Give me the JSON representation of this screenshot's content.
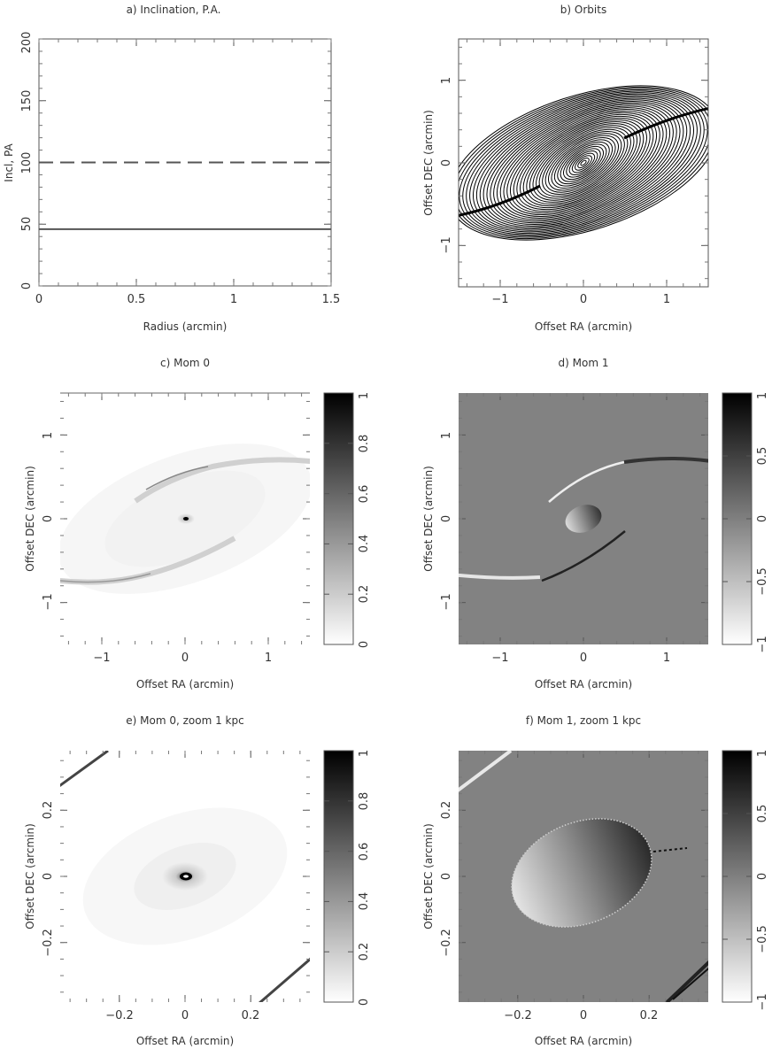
{
  "panels": [
    {
      "id": "a",
      "title": "a) Inclination, P.A.",
      "xlabel": "Radius (arcmin)",
      "ylabel": "Incl, PA",
      "xlim": [
        0,
        1.5
      ],
      "ylim": [
        0,
        200
      ],
      "xticks": [
        "0",
        "0.5",
        "1",
        "1.5"
      ],
      "yticks": [
        "0",
        "50",
        "100",
        "150",
        "200"
      ]
    },
    {
      "id": "b",
      "title": "b) Orbits",
      "xlabel": "Offset RA (arcmin)",
      "ylabel": "Offset DEC (arcmin)",
      "xticks": [
        "−1",
        "0",
        "1"
      ],
      "yticks": [
        "−1",
        "0",
        "1"
      ]
    },
    {
      "id": "c",
      "title": "c) Mom 0",
      "xlabel": "Offset RA (arcmin)",
      "ylabel": "Offset DEC (arcmin)",
      "xticks": [
        "−1",
        "0",
        "1"
      ],
      "yticks": [
        "−1",
        "0",
        "1"
      ],
      "cbar_ticks": [
        "0",
        "0.2",
        "0.4",
        "0.6",
        "0.8",
        "1"
      ]
    },
    {
      "id": "d",
      "title": "d) Mom 1",
      "xlabel": "Offset RA (arcmin)",
      "ylabel": "Offset DEC (arcmin)",
      "xticks": [
        "−1",
        "0",
        "1"
      ],
      "yticks": [
        "−1",
        "0",
        "1"
      ],
      "cbar_ticks": [
        "−1",
        "−0.5",
        "0",
        "0.5",
        "1"
      ]
    },
    {
      "id": "e",
      "title": "e) Mom 0, zoom 1 kpc",
      "xlabel": "Offset RA (arcmin)",
      "ylabel": "Offset DEC (arcmin)",
      "xticks": [
        "−0.2",
        "0",
        "0.2"
      ],
      "yticks": [
        "−0.2",
        "0",
        "0.2"
      ],
      "cbar_ticks": [
        "0",
        "0.2",
        "0.4",
        "0.6",
        "0.8",
        "1"
      ]
    },
    {
      "id": "f",
      "title": "f) Mom 1, zoom 1 kpc",
      "xlabel": "Offset RA (arcmin)",
      "ylabel": "Offset DEC (arcmin)",
      "xticks": [
        "−0.2",
        "0",
        "0.2"
      ],
      "yticks": [
        "−0.2",
        "0",
        "0.2"
      ],
      "cbar_ticks": [
        "−1",
        "−0.5",
        "0",
        "0.5",
        "1"
      ]
    }
  ],
  "chart_data": [
    {
      "type": "line",
      "panel": "a",
      "title": "a) Inclination, P.A.",
      "xlabel": "Radius (arcmin)",
      "ylabel": "Incl, PA",
      "xlim": [
        0,
        1.5
      ],
      "ylim": [
        0,
        200
      ],
      "series": [
        {
          "style": "dashed",
          "x": [
            0,
            1.5
          ],
          "y": [
            100,
            100
          ]
        },
        {
          "style": "solid",
          "x": [
            0,
            1.5
          ],
          "y": [
            46,
            46
          ]
        }
      ]
    },
    {
      "type": "line",
      "panel": "b",
      "title": "b) Orbits",
      "xlabel": "Offset RA (arcmin)",
      "ylabel": "Offset DEC (arcmin)",
      "xlim": [
        -1.5,
        1.5
      ],
      "ylim": [
        -1.5,
        1.5
      ]
    },
    {
      "type": "heatmap",
      "panel": "c",
      "title": "c) Mom 0",
      "xlabel": "Offset RA (arcmin)",
      "ylabel": "Offset DEC (arcmin)",
      "xlim": [
        -1.5,
        1.5
      ],
      "ylim": [
        -1.5,
        1.5
      ],
      "colorbar_range": [
        0,
        1
      ]
    },
    {
      "type": "heatmap",
      "panel": "d",
      "title": "d) Mom 1",
      "xlabel": "Offset RA (arcmin)",
      "ylabel": "Offset DEC (arcmin)",
      "xlim": [
        -1.5,
        1.5
      ],
      "ylim": [
        -1.5,
        1.5
      ],
      "colorbar_range": [
        -1,
        1
      ]
    },
    {
      "type": "heatmap",
      "panel": "e",
      "title": "e) Mom 0, zoom 1 kpc",
      "xlabel": "Offset RA (arcmin)",
      "ylabel": "Offset DEC (arcmin)",
      "xlim": [
        -0.38,
        0.38
      ],
      "ylim": [
        -0.38,
        0.38
      ],
      "colorbar_range": [
        0,
        1
      ]
    },
    {
      "type": "heatmap",
      "panel": "f",
      "title": "f) Mom 1, zoom 1 kpc",
      "xlabel": "Offset RA (arcmin)",
      "ylabel": "Offset DEC (arcmin)",
      "xlim": [
        -0.38,
        0.38
      ],
      "ylim": [
        -0.38,
        0.38
      ],
      "colorbar_range": [
        -1,
        1
      ]
    }
  ]
}
